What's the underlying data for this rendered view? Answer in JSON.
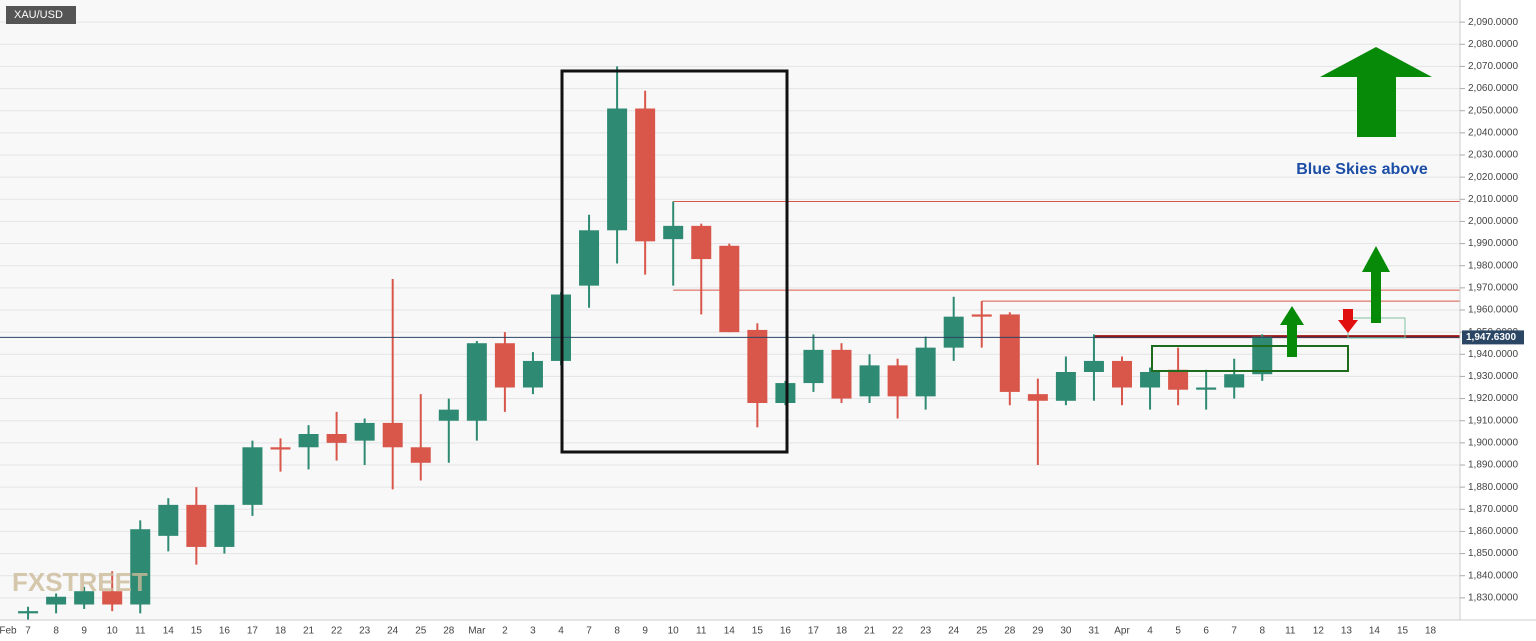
{
  "chart_data": {
    "type": "candlestick",
    "symbol": "XAU/USD",
    "annotation": "Blue Skies above",
    "watermark": "FXSTREET",
    "last_price": {
      "value": 1947.63,
      "label": "1,947.6300"
    },
    "categories": [
      "Feb",
      "7",
      "8",
      "9",
      "10",
      "11",
      "14",
      "15",
      "16",
      "17",
      "18",
      "21",
      "22",
      "23",
      "24",
      "25",
      "28",
      "Mar",
      "2",
      "3",
      "4",
      "7",
      "8",
      "9",
      "10",
      "11",
      "14",
      "15",
      "16",
      "17",
      "18",
      "21",
      "22",
      "23",
      "24",
      "25",
      "28",
      "29",
      "30",
      "31",
      "Apr",
      "4",
      "5",
      "6",
      "7",
      "8",
      "11",
      "12",
      "13",
      "14",
      "15",
      "18"
    ],
    "open": [
      null,
      1823,
      1827,
      1827,
      1833,
      1827,
      1858,
      1872,
      1853,
      1872,
      1898,
      1898,
      1904,
      1901,
      1909,
      1898,
      1910,
      1910,
      1945,
      1925,
      1937,
      1971,
      1996,
      2051,
      1992,
      1998,
      1989,
      1951,
      1918,
      1927,
      1942,
      1921,
      1935,
      1921,
      1943,
      1958,
      1958,
      1922,
      1919,
      1932,
      1937,
      1925,
      1933,
      1924,
      1925,
      1931,
      null,
      null,
      null,
      null,
      null,
      null
    ],
    "high": [
      null,
      1826,
      1832,
      1835,
      1842,
      1865,
      1875,
      1880,
      1872,
      1901,
      1902,
      1908,
      1914,
      1911,
      1974,
      1922,
      1920,
      1946,
      1950,
      1941,
      1968,
      2003,
      2070,
      2059,
      2009,
      1999,
      1990,
      1954,
      1928,
      1949,
      1945,
      1940,
      1938,
      1948,
      1966,
      1964,
      1959,
      1929,
      1939,
      1949,
      1939,
      1934,
      1943,
      1933,
      1938,
      1949,
      null,
      null,
      null,
      null,
      null,
      null
    ],
    "low": [
      null,
      1820,
      1823,
      1825,
      1824,
      1823,
      1851,
      1845,
      1850,
      1867,
      1887,
      1888,
      1892,
      1890,
      1879,
      1883,
      1891,
      1901,
      1914,
      1922,
      1935,
      1961,
      1981,
      1976,
      1971,
      1958,
      1950,
      1907,
      1917,
      1923,
      1918,
      1918,
      1911,
      1915,
      1937,
      1943,
      1917,
      1890,
      1917,
      1919,
      1917,
      1915,
      1917,
      1915,
      1920,
      1928,
      null,
      null,
      null,
      null,
      null,
      null
    ],
    "close": [
      null,
      1824,
      1830.5,
      1833,
      1827,
      1861,
      1872,
      1853,
      1872,
      1898,
      1897,
      1904,
      1900,
      1909,
      1898,
      1891,
      1915,
      1945,
      1925,
      1937,
      1967,
      1996,
      2051,
      1991,
      1998,
      1983,
      1950,
      1918,
      1927,
      1942,
      1920,
      1935,
      1921,
      1943,
      1957,
      1957,
      1923,
      1919,
      1932,
      1937,
      1925,
      1932,
      1924,
      1925,
      1931,
      1948,
      null,
      null,
      null,
      null,
      null,
      null
    ],
    "up_color": "#2f8a73",
    "down_color": "#d9574a",
    "levels": [
      2009,
      1969,
      1964,
      1948
    ],
    "ylim": [
      1820,
      2100
    ],
    "yticks": [
      {
        "value": 1830,
        "label": "1,830.0000"
      },
      {
        "value": 1840,
        "label": "1,840.0000"
      },
      {
        "value": 1850,
        "label": "1,850.0000"
      },
      {
        "value": 1860,
        "label": "1,860.0000"
      },
      {
        "value": 1870,
        "label": "1,870.0000"
      },
      {
        "value": 1880,
        "label": "1,880.0000"
      },
      {
        "value": 1890,
        "label": "1,890.0000"
      },
      {
        "value": 1900,
        "label": "1,900.0000"
      },
      {
        "value": 1910,
        "label": "1,910.0000"
      },
      {
        "value": 1920,
        "label": "1,920.0000"
      },
      {
        "value": 1930,
        "label": "1,930.0000"
      },
      {
        "value": 1940,
        "label": "1,940.0000"
      },
      {
        "value": 1950,
        "label": "1,950.0000"
      },
      {
        "value": 1960,
        "label": "1,960.0000"
      },
      {
        "value": 1970,
        "label": "1,970.0000"
      },
      {
        "value": 1980,
        "label": "1,980.0000"
      },
      {
        "value": 1990,
        "label": "1,990.0000"
      },
      {
        "value": 2000,
        "label": "2,000.0000"
      },
      {
        "value": 2010,
        "label": "2,010.0000"
      },
      {
        "value": 2020,
        "label": "2,020.0000"
      },
      {
        "value": 2030,
        "label": "2,030.0000"
      },
      {
        "value": 2040,
        "label": "2,040.0000"
      },
      {
        "value": 2050,
        "label": "2,050.0000"
      },
      {
        "value": 2060,
        "label": "2,060.0000"
      },
      {
        "value": 2070,
        "label": "2,070.0000"
      },
      {
        "value": 2080,
        "label": "2,080.0000"
      },
      {
        "value": 2090,
        "label": "2,090.0000"
      }
    ],
    "grid": true
  }
}
